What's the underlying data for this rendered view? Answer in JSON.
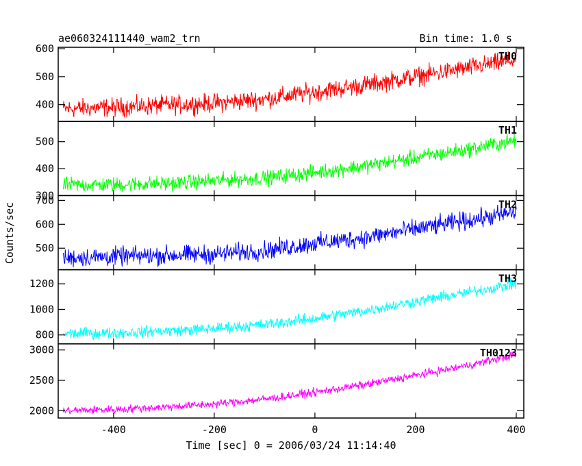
{
  "header": {
    "title": "ae060324111440_wam2_trn",
    "bin_time": "Bin time: 1.0 s"
  },
  "chart_data": {
    "type": "line",
    "title": "ae060324111440_wam2_trn",
    "subtitle": "Bin time: 1.0 s",
    "xlabel": "Time [sec] 0 = 2006/03/24 11:14:40",
    "ylabel": "Counts/sec",
    "xlim": [
      -510,
      415
    ],
    "x_ticks": [
      -400,
      -200,
      0,
      200,
      400
    ],
    "x_step": 1,
    "panels": [
      {
        "name": "TH0",
        "color": "#ff0000",
        "ylim": [
          340,
          605
        ],
        "y_ticks": [
          400,
          500,
          600
        ],
        "x": [
          -500,
          -400,
          -300,
          -200,
          -100,
          0,
          100,
          200,
          300,
          400
        ],
        "y": [
          385,
          390,
          398,
          405,
          420,
          445,
          470,
          500,
          530,
          560
        ],
        "noise_amplitude": 30
      },
      {
        "name": "TH1",
        "color": "#00ff00",
        "ylim": [
          300,
          575
        ],
        "y_ticks": [
          300,
          400,
          500
        ],
        "x": [
          -500,
          -400,
          -300,
          -200,
          -100,
          0,
          100,
          200,
          300,
          400
        ],
        "y": [
          340,
          340,
          345,
          355,
          365,
          385,
          410,
          440,
          470,
          505
        ],
        "noise_amplitude": 25
      },
      {
        "name": "TH2",
        "color": "#0000ff",
        "ylim": [
          410,
          720
        ],
        "y_ticks": [
          500,
          600,
          700
        ],
        "x": [
          -500,
          -400,
          -300,
          -200,
          -100,
          0,
          100,
          200,
          300,
          400
        ],
        "y": [
          460,
          465,
          470,
          475,
          490,
          520,
          545,
          580,
          615,
          650
        ],
        "noise_amplitude": 35
      },
      {
        "name": "TH3",
        "color": "#00ffff",
        "ylim": [
          730,
          1310
        ],
        "y_ticks": [
          800,
          1000,
          1200
        ],
        "x": [
          -500,
          -400,
          -300,
          -200,
          -100,
          0,
          100,
          200,
          300,
          400
        ],
        "y": [
          810,
          815,
          830,
          850,
          880,
          930,
          990,
          1060,
          1130,
          1200
        ],
        "noise_amplitude": 40
      },
      {
        "name": "TH0123",
        "color": "#ff00ff",
        "ylim": [
          1880,
          3100
        ],
        "y_ticks": [
          2000,
          2500,
          3000
        ],
        "x": [
          -500,
          -400,
          -300,
          -200,
          -100,
          0,
          100,
          200,
          300,
          400
        ],
        "y": [
          2000,
          2020,
          2060,
          2110,
          2190,
          2300,
          2430,
          2580,
          2740,
          2920
        ],
        "noise_amplitude": 60
      }
    ]
  }
}
